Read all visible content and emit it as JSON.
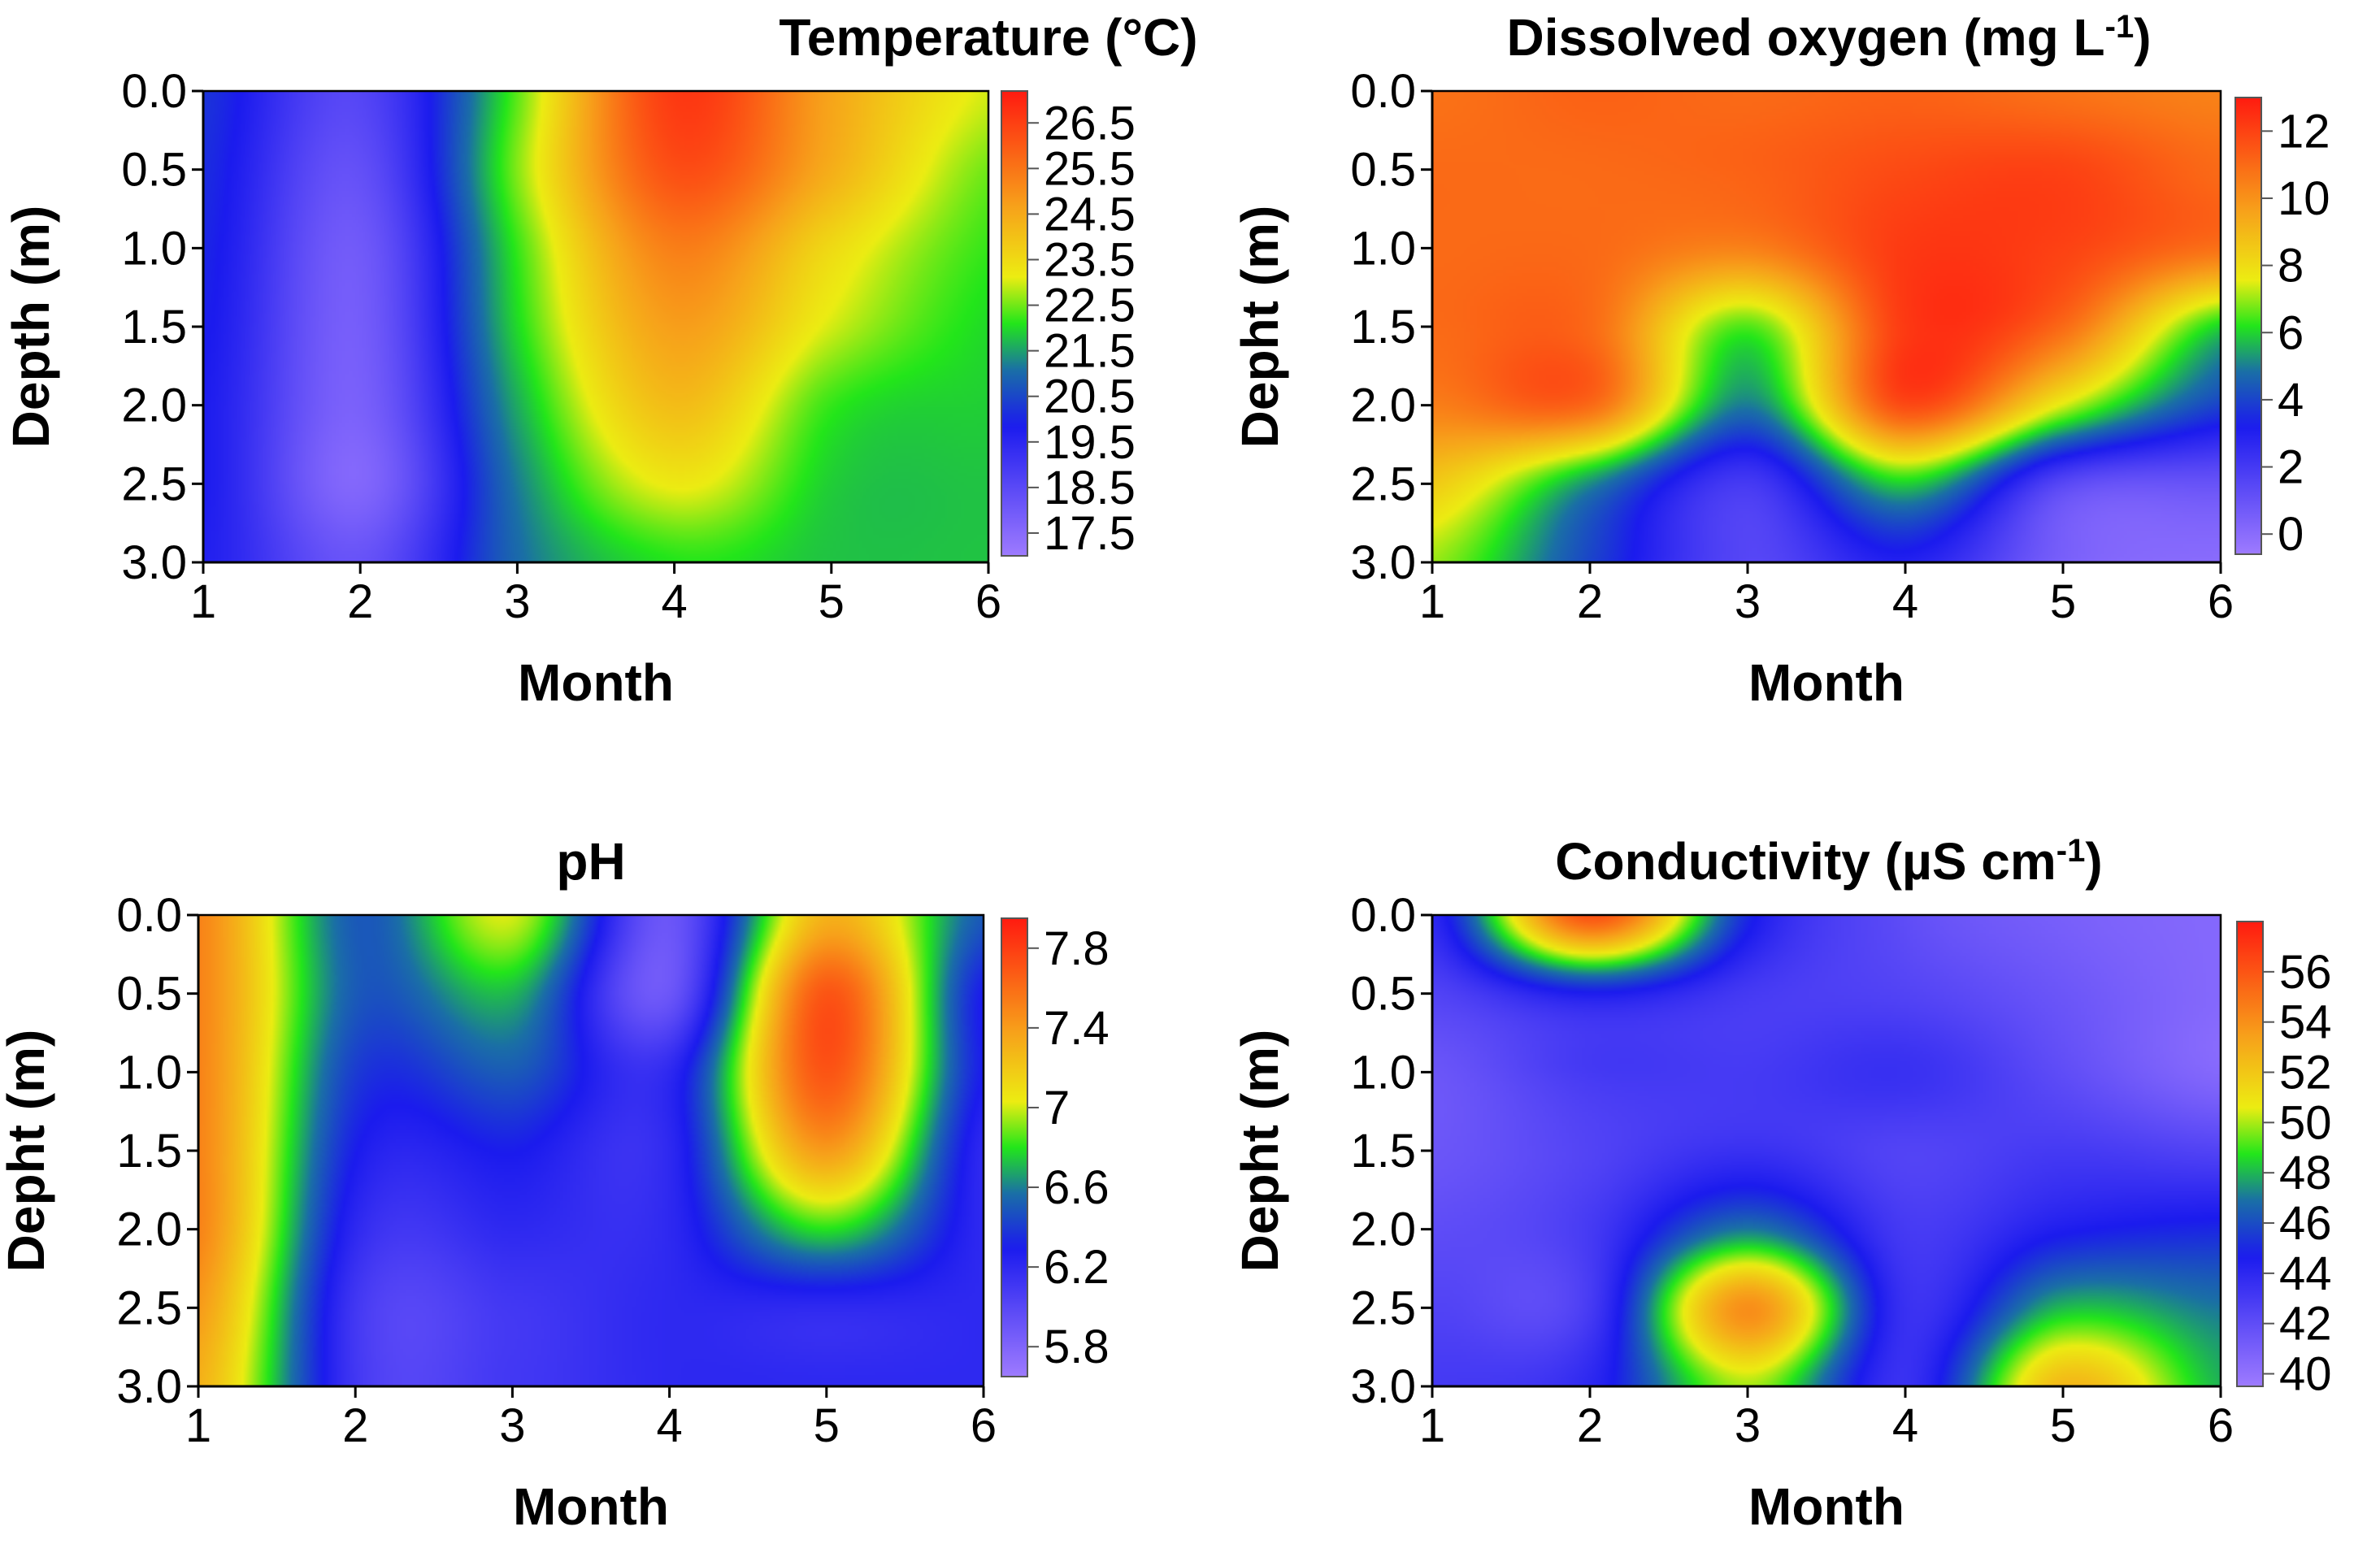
{
  "figure": {
    "colormap": [
      {
        "v": 0.0,
        "c": "#9e7bff"
      },
      {
        "v": 0.28,
        "c": "#1b1bee"
      },
      {
        "v": 0.4,
        "c": "#1a6fa6"
      },
      {
        "v": 0.5,
        "c": "#22e61a"
      },
      {
        "v": 0.6,
        "c": "#ecec12"
      },
      {
        "v": 0.75,
        "c": "#f7a21a"
      },
      {
        "v": 1.0,
        "c": "#ff1a10"
      }
    ]
  },
  "chart_data": [
    {
      "type": "heatmap",
      "title": "Temperature (°C)",
      "xlabel": "Month",
      "ylabel": "Depth (m)",
      "xlim": [
        1,
        6
      ],
      "ylim": [
        0,
        3
      ],
      "x_ticks": [
        "1",
        "2",
        "3",
        "4",
        "5",
        "6"
      ],
      "y_ticks": [
        "0.0",
        "0.5",
        "1.0",
        "1.5",
        "2.0",
        "2.5",
        "3.0"
      ],
      "colorbar": {
        "min": 17.0,
        "max": 27.2,
        "ticks": [
          17.5,
          18.5,
          19.5,
          20.5,
          21.5,
          22.5,
          23.5,
          24.5,
          25.5,
          26.5
        ],
        "labels": [
          "17.5",
          "18.5",
          "19.5",
          "20.5",
          "21.5",
          "22.5",
          "23.5",
          "24.5",
          "25.5",
          "26.5"
        ]
      },
      "months": [
        1,
        2,
        3,
        4,
        5,
        6
      ],
      "depths": [
        0,
        0.5,
        1.0,
        1.5,
        2.0,
        2.5,
        3.0
      ],
      "grid": [
        [
          20.2,
          18.6,
          22.4,
          26.6,
          24.6,
          23.0
        ],
        [
          20.1,
          18.3,
          22.6,
          26.2,
          24.4,
          22.5
        ],
        [
          20.0,
          18.0,
          22.2,
          25.3,
          23.5,
          22.2
        ],
        [
          19.9,
          17.9,
          22.0,
          24.7,
          23.0,
          22.0
        ],
        [
          19.8,
          17.8,
          21.6,
          24.1,
          22.2,
          21.9
        ],
        [
          19.8,
          17.6,
          21.2,
          23.2,
          21.9,
          21.8
        ],
        [
          19.7,
          18.2,
          21.0,
          22.1,
          21.8,
          21.8
        ]
      ]
    },
    {
      "type": "heatmap",
      "title": "Dissolved oxygen (mg L",
      "title_sup": "-1",
      "title_suffix": ")",
      "xlabel": "Month",
      "ylabel": "Depht (m)",
      "xlim": [
        1,
        6
      ],
      "ylim": [
        0,
        3
      ],
      "x_ticks": [
        "1",
        "2",
        "3",
        "4",
        "5",
        "6"
      ],
      "y_ticks": [
        "0.0",
        "0.5",
        "1.0",
        "1.5",
        "2.0",
        "2.5",
        "3.0"
      ],
      "colorbar": {
        "min": -0.6,
        "max": 13.0,
        "ticks": [
          0,
          2,
          4,
          6,
          8,
          10,
          12
        ],
        "labels": [
          "0",
          "2",
          "4",
          "6",
          "8",
          "10",
          "12"
        ]
      },
      "months": [
        1,
        2,
        3,
        4,
        5,
        6
      ],
      "depths": [
        0,
        0.5,
        1.0,
        1.5,
        2.0,
        2.5,
        3.0
      ],
      "grid": [
        [
          10.8,
          11.2,
          11.0,
          11.2,
          10.8,
          10.4
        ],
        [
          11.0,
          11.0,
          11.2,
          11.8,
          12.0,
          11.0
        ],
        [
          11.0,
          11.0,
          10.4,
          12.2,
          12.0,
          10.8
        ],
        [
          11.0,
          11.0,
          6.5,
          12.2,
          11.0,
          6.0
        ],
        [
          10.5,
          11.0,
          5.0,
          11.8,
          7.5,
          4.0
        ],
        [
          8.5,
          5.2,
          2.0,
          6.0,
          1.5,
          1.0
        ],
        [
          7.0,
          4.0,
          1.5,
          3.0,
          0.5,
          0.0
        ]
      ]
    },
    {
      "type": "heatmap",
      "title": "pH",
      "xlabel": "Month",
      "ylabel": "Depht (m)",
      "xlim": [
        1,
        6
      ],
      "ylim": [
        0,
        3
      ],
      "x_ticks": [
        "1",
        "2",
        "3",
        "4",
        "5",
        "6"
      ],
      "y_ticks": [
        "0.0",
        "0.5",
        "1.0",
        "1.5",
        "2.0",
        "2.5",
        "3.0"
      ],
      "colorbar": {
        "min": 5.65,
        "max": 7.95,
        "ticks": [
          5.8,
          6.2,
          6.6,
          7.0,
          7.4,
          7.8
        ],
        "labels": [
          "5.8",
          "6.2",
          "6.6",
          "7",
          "7.4",
          "7.8"
        ]
      },
      "months": [
        1,
        2,
        3,
        4,
        5,
        6
      ],
      "depths": [
        0,
        0.5,
        1.0,
        1.5,
        2.0,
        2.5,
        3.0
      ],
      "grid": [
        [
          7.5,
          6.5,
          7.0,
          5.9,
          7.3,
          6.5
        ],
        [
          7.5,
          6.5,
          6.7,
          5.9,
          7.7,
          6.3
        ],
        [
          7.5,
          6.4,
          6.5,
          6.2,
          7.7,
          6.3
        ],
        [
          7.5,
          6.3,
          6.3,
          6.2,
          7.4,
          6.2
        ],
        [
          7.5,
          6.2,
          6.2,
          6.2,
          6.8,
          6.2
        ],
        [
          7.4,
          6.1,
          6.1,
          6.2,
          6.2,
          6.2
        ],
        [
          7.3,
          6.1,
          6.1,
          6.2,
          6.2,
          6.2
        ]
      ]
    },
    {
      "type": "heatmap",
      "title": "Conductivity (µS cm",
      "title_sup": "-1",
      "title_suffix": ")",
      "xlabel": "Month",
      "ylabel": "Depht (m)",
      "xlim": [
        1,
        6
      ],
      "ylim": [
        0,
        3
      ],
      "x_ticks": [
        "1",
        "2",
        "3",
        "4",
        "5",
        "6"
      ],
      "y_ticks": [
        "0.0",
        "0.5",
        "1.0",
        "1.5",
        "2.0",
        "2.5",
        "3.0"
      ],
      "colorbar": {
        "min": 39.5,
        "max": 58.0,
        "ticks": [
          40,
          42,
          44,
          46,
          48,
          50,
          52,
          54,
          56
        ],
        "labels": [
          "40",
          "42",
          "44",
          "46",
          "48",
          "50",
          "52",
          "54",
          "56"
        ]
      },
      "months": [
        1,
        2,
        3,
        4,
        5,
        6
      ],
      "depths": [
        0,
        0.5,
        1.0,
        1.5,
        2.0,
        2.5,
        3.0
      ],
      "grid": [
        [
          44.0,
          56.0,
          45.0,
          42.0,
          41.0,
          40.5
        ],
        [
          42.5,
          44.5,
          43.0,
          42.5,
          41.5,
          40.5
        ],
        [
          41.5,
          43.0,
          43.0,
          43.5,
          42.0,
          40.5
        ],
        [
          41.5,
          42.5,
          43.5,
          42.5,
          43.0,
          42.5
        ],
        [
          42.0,
          43.0,
          47.0,
          43.0,
          44.5,
          45.0
        ],
        [
          42.5,
          43.0,
          54.0,
          43.5,
          48.0,
          47.0
        ],
        [
          43.0,
          44.0,
          50.0,
          43.5,
          52.5,
          48.0
        ]
      ]
    }
  ]
}
